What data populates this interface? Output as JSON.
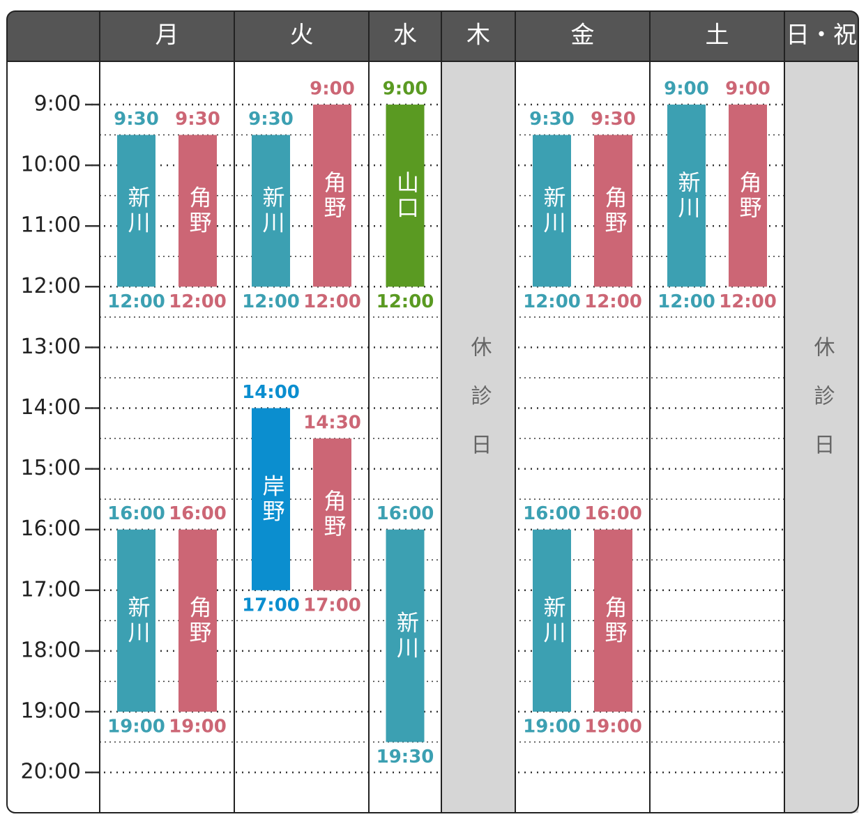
{
  "schedule": {
    "hours": [
      "9:00",
      "10:00",
      "11:00",
      "12:00",
      "13:00",
      "14:00",
      "15:00",
      "16:00",
      "17:00",
      "18:00",
      "19:00",
      "20:00"
    ],
    "days": [
      {
        "label": "月",
        "columns": [
          [
            {
              "name": "新川",
              "start": "9:30",
              "end": "12:00",
              "color": "#3ca0b2"
            },
            {
              "name": "新川",
              "start": "16:00",
              "end": "19:00",
              "color": "#3ca0b2"
            }
          ],
          [
            {
              "name": "角野",
              "start": "9:30",
              "end": "12:00",
              "color": "#cc6675"
            },
            {
              "name": "角野",
              "start": "16:00",
              "end": "19:00",
              "color": "#cc6675"
            }
          ]
        ]
      },
      {
        "label": "火",
        "columns": [
          [
            {
              "name": "新川",
              "start": "9:30",
              "end": "12:00",
              "color": "#3ca0b2"
            },
            {
              "name": "岸野",
              "start": "14:00",
              "end": "17:00",
              "color": "#0b8ecf"
            }
          ],
          [
            {
              "name": "角野",
              "start": "9:00",
              "end": "12:00",
              "color": "#cc6675"
            },
            {
              "name": "角野",
              "start": "14:30",
              "end": "17:00",
              "color": "#cc6675"
            }
          ]
        ]
      },
      {
        "label": "水",
        "columns": [
          [
            {
              "name": "山口",
              "start": "9:00",
              "end": "12:00",
              "color": "#5a9a22"
            },
            {
              "name": "新川",
              "start": "16:00",
              "end": "19:30",
              "color": "#3ca0b2"
            }
          ]
        ]
      },
      {
        "label": "木",
        "closed": "休診日"
      },
      {
        "label": "金",
        "columns": [
          [
            {
              "name": "新川",
              "start": "9:30",
              "end": "12:00",
              "color": "#3ca0b2"
            },
            {
              "name": "新川",
              "start": "16:00",
              "end": "19:00",
              "color": "#3ca0b2"
            }
          ],
          [
            {
              "name": "角野",
              "start": "9:30",
              "end": "12:00",
              "color": "#cc6675"
            },
            {
              "name": "角野",
              "start": "16:00",
              "end": "19:00",
              "color": "#cc6675"
            }
          ]
        ]
      },
      {
        "label": "土",
        "columns": [
          [
            {
              "name": "新川",
              "start": "9:00",
              "end": "12:00",
              "color": "#3ca0b2"
            }
          ],
          [
            {
              "name": "角野",
              "start": "9:00",
              "end": "12:00",
              "color": "#cc6675"
            }
          ]
        ]
      },
      {
        "label": "日・祝",
        "closed": "休診日"
      }
    ]
  }
}
